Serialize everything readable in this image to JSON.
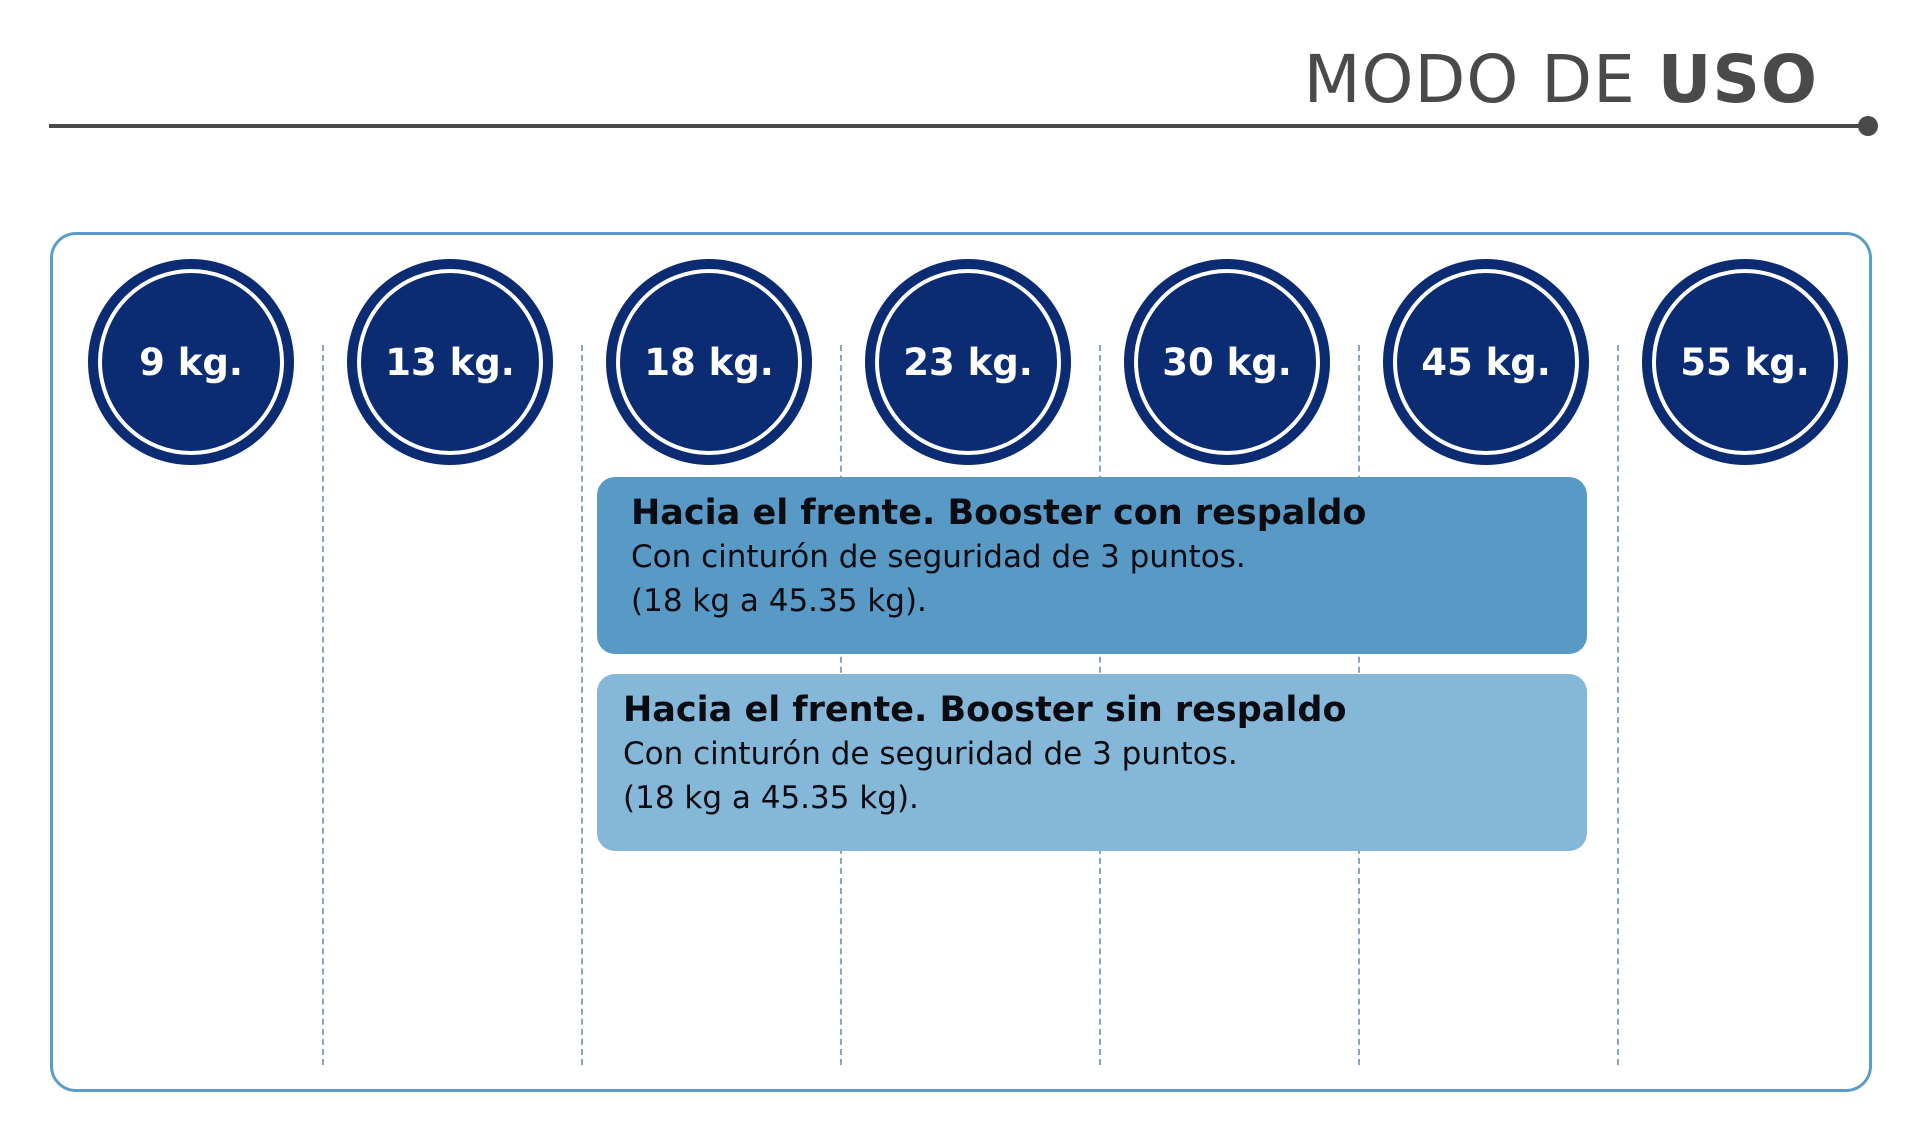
{
  "header": {
    "title_light": "MODO DE ",
    "title_bold": "USO"
  },
  "weights": [
    "9 kg.",
    "13 kg.",
    "18 kg.",
    "23 kg.",
    "30 kg.",
    "45 kg.",
    "55 kg."
  ],
  "modes": {
    "with_back": {
      "title": "Hacia el frente. Booster con respaldo",
      "line1": "Con cinturón de seguridad de 3 puntos.",
      "line2": "(18 kg a 45.35 kg)."
    },
    "without_back": {
      "title": "Hacia el frente. Booster sin respaldo",
      "line1": "Con cinturón de seguridad de 3 puntos.",
      "line2": "(18 kg a 45.35 kg)."
    }
  },
  "colors": {
    "circle": "#0b2b72",
    "box_with_back": "#5899c6",
    "box_without_back": "#84b7d8",
    "panel_border": "#5b9ccb",
    "header": "#4a4a4c"
  }
}
